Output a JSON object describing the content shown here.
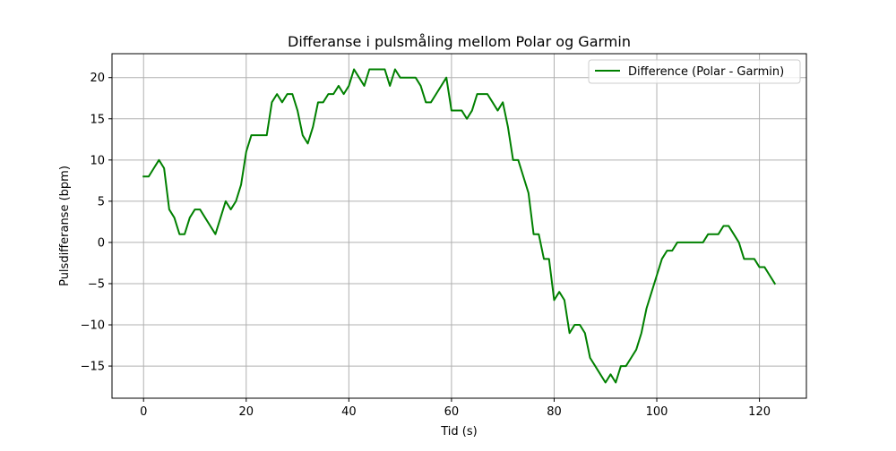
{
  "chart_data": {
    "type": "line",
    "title": "Differanse i pulsmåling mellom Polar og Garmin",
    "xlabel": "Tid (s)",
    "ylabel": "Pulsdifferanse (bpm)",
    "xlim": [
      -6.15,
      129.15
    ],
    "ylim": [
      -18.9,
      22.9
    ],
    "xticks": [
      0,
      20,
      40,
      60,
      80,
      100,
      120
    ],
    "yticks": [
      -15,
      -10,
      -5,
      0,
      5,
      10,
      15,
      20
    ],
    "xtick_labels": [
      "0",
      "20",
      "40",
      "60",
      "80",
      "100",
      "120"
    ],
    "ytick_labels": [
      "−15",
      "−10",
      "−5",
      "0",
      "5",
      "10",
      "15",
      "20"
    ],
    "grid": true,
    "legend_position": "upper right",
    "series": [
      {
        "name": "Difference (Polar - Garmin)",
        "color": "#008000",
        "x": [
          0,
          1,
          2,
          3,
          4,
          5,
          6,
          7,
          8,
          9,
          10,
          11,
          12,
          13,
          14,
          15,
          16,
          17,
          18,
          19,
          20,
          21,
          22,
          23,
          24,
          25,
          26,
          27,
          28,
          29,
          30,
          31,
          32,
          33,
          34,
          35,
          36,
          37,
          38,
          39,
          40,
          41,
          42,
          43,
          44,
          45,
          46,
          47,
          48,
          49,
          50,
          51,
          52,
          53,
          54,
          55,
          56,
          57,
          58,
          59,
          60,
          61,
          62,
          63,
          64,
          65,
          66,
          67,
          68,
          69,
          70,
          71,
          72,
          73,
          74,
          75,
          76,
          77,
          78,
          79,
          80,
          81,
          82,
          83,
          84,
          85,
          86,
          87,
          88,
          89,
          90,
          91,
          92,
          93,
          94,
          95,
          96,
          97,
          98,
          99,
          100,
          101,
          102,
          103,
          104,
          105,
          106,
          107,
          108,
          109,
          110,
          111,
          112,
          113,
          114,
          115,
          116,
          117,
          118,
          119,
          120,
          121,
          122,
          123
        ],
        "y": [
          8,
          8,
          9,
          10,
          9,
          4,
          3,
          1,
          1,
          3,
          4,
          4,
          3,
          2,
          1,
          3,
          5,
          4,
          5,
          7,
          11,
          13,
          13,
          13,
          13,
          17,
          18,
          17,
          18,
          18,
          16,
          13,
          12,
          14,
          17,
          17,
          18,
          18,
          19,
          18,
          19,
          21,
          20,
          19,
          21,
          21,
          21,
          21,
          19,
          21,
          20,
          20,
          20,
          20,
          19,
          17,
          17,
          18,
          19,
          20,
          16,
          16,
          16,
          15,
          16,
          18,
          18,
          18,
          17,
          16,
          17,
          14,
          10,
          10,
          8,
          6,
          1,
          1,
          -2,
          -2,
          -7,
          -6,
          -7,
          -11,
          -10,
          -10,
          -11,
          -14,
          -15,
          -16,
          -17,
          -16,
          -17,
          -15,
          -15,
          -14,
          -13,
          -11,
          -8,
          -6,
          -4,
          -2,
          -1,
          -1,
          0,
          0,
          0,
          0,
          0,
          0,
          1,
          1,
          1,
          2,
          2,
          1,
          0,
          -2,
          -2,
          -2,
          -3,
          -3,
          -4,
          -5
        ]
      }
    ]
  }
}
